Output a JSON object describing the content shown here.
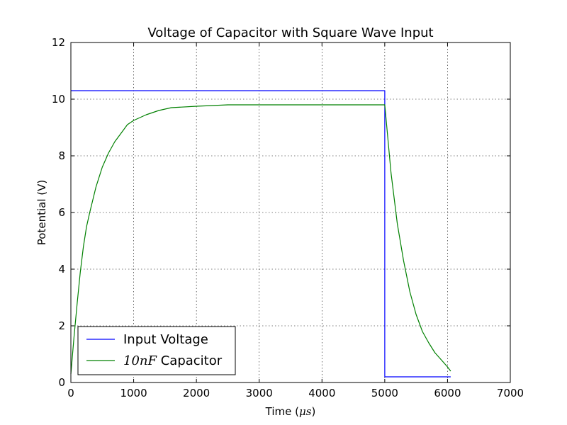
{
  "chart_data": {
    "type": "line",
    "title": "Voltage of Capacitor with Square Wave Input",
    "xlabel": {
      "prefix": "Time (",
      "math": "μs",
      "suffix": ")"
    },
    "ylabel": "Potential (V)",
    "xlim": [
      0,
      7000
    ],
    "ylim": [
      0,
      12
    ],
    "xticks": [
      0,
      1000,
      2000,
      3000,
      4000,
      5000,
      6000,
      7000
    ],
    "yticks": [
      0,
      2,
      4,
      6,
      8,
      10,
      12
    ],
    "grid": true,
    "legend_position": "lower-left",
    "series": [
      {
        "name": "Input Voltage",
        "legend_math": "",
        "legend_text": "Input Voltage",
        "color": "#0000ff",
        "x": [
          0,
          5000,
          5000,
          6050
        ],
        "y": [
          10.3,
          10.3,
          0.2,
          0.2
        ]
      },
      {
        "name": "10nF Capacitor",
        "legend_math": "10nF",
        "legend_text": "Capacitor",
        "color": "#008000",
        "x": [
          0,
          50,
          100,
          150,
          200,
          250,
          300,
          400,
          500,
          600,
          700,
          800,
          900,
          1000,
          1200,
          1400,
          1600,
          2000,
          2500,
          3000,
          3500,
          4000,
          4500,
          5000,
          5050,
          5100,
          5200,
          5300,
          5400,
          5500,
          5600,
          5700,
          5800,
          5900,
          6000,
          6050
        ],
        "y": [
          0.3,
          1.6,
          2.8,
          3.9,
          4.8,
          5.5,
          6.0,
          6.9,
          7.6,
          8.1,
          8.5,
          8.8,
          9.1,
          9.25,
          9.45,
          9.6,
          9.7,
          9.75,
          9.8,
          9.8,
          9.8,
          9.8,
          9.8,
          9.8,
          8.6,
          7.4,
          5.6,
          4.3,
          3.2,
          2.4,
          1.8,
          1.4,
          1.05,
          0.8,
          0.55,
          0.4
        ]
      }
    ]
  }
}
